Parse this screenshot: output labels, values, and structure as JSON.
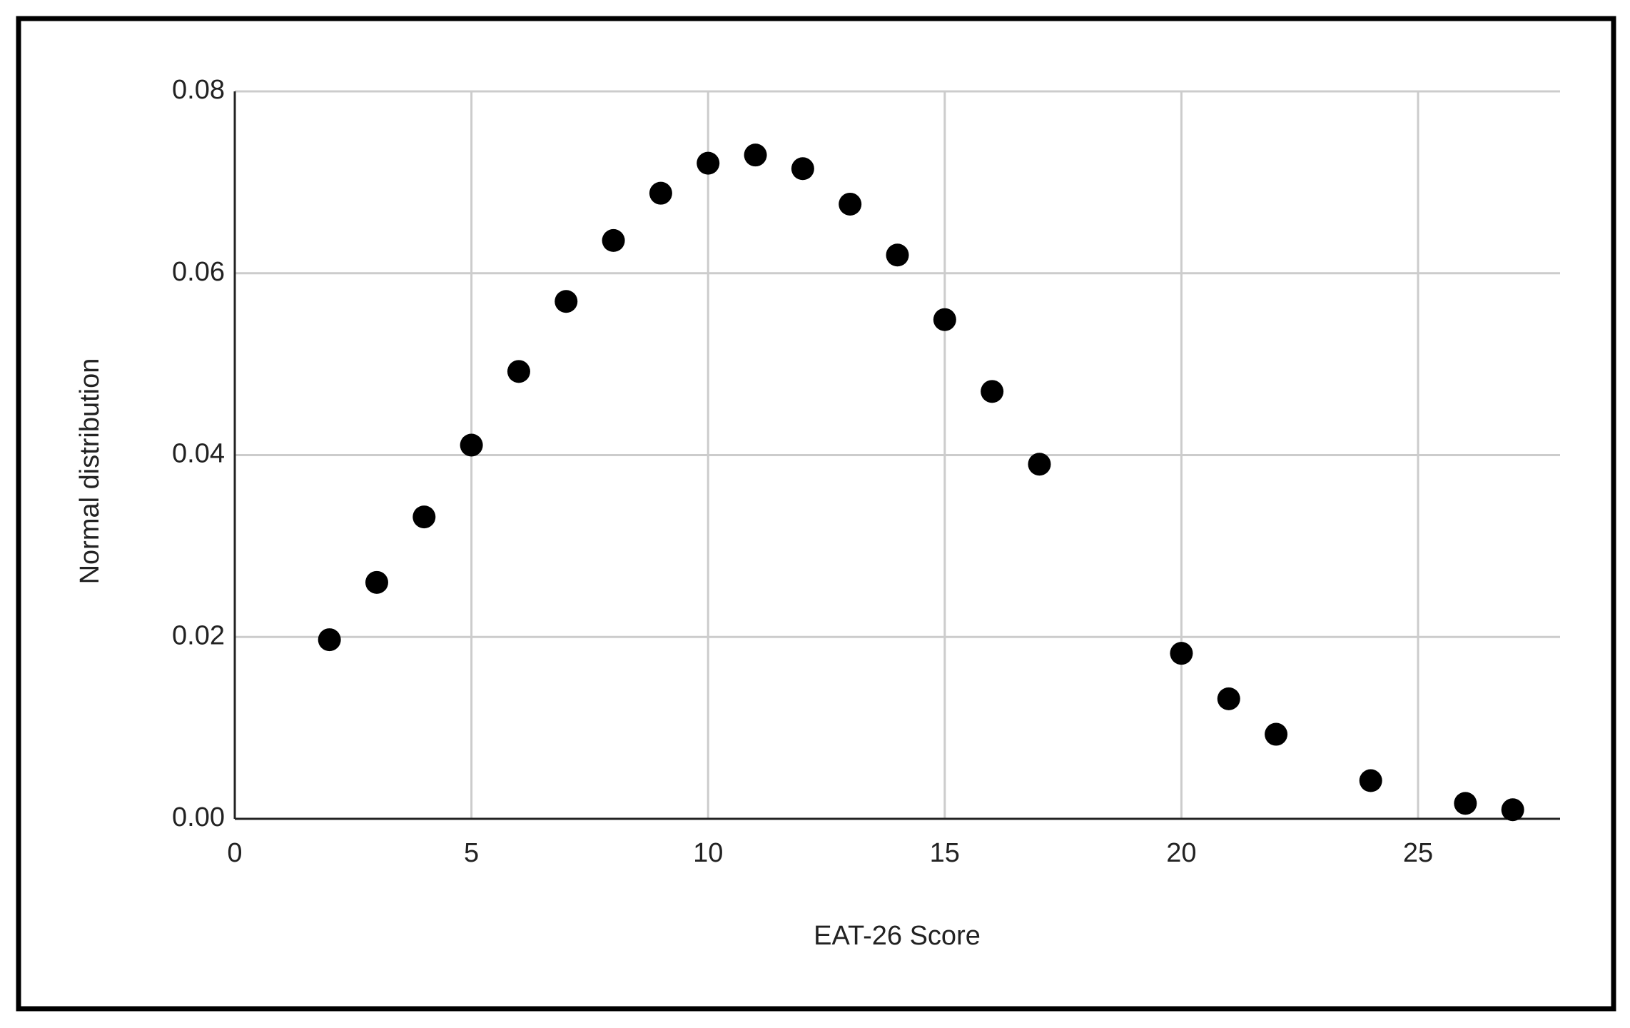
{
  "chart_data": {
    "type": "scatter",
    "x_label": "EAT-26 Score",
    "y_label": "Normal distribution",
    "x": [
      2,
      3,
      4,
      5,
      6,
      7,
      8,
      9,
      10,
      11,
      12,
      13,
      14,
      15,
      16,
      17,
      20,
      21,
      22,
      24,
      26,
      27
    ],
    "values": [
      0.0197,
      0.026,
      0.0332,
      0.0411,
      0.0492,
      0.0569,
      0.0636,
      0.0688,
      0.0721,
      0.073,
      0.0715,
      0.0676,
      0.062,
      0.0549,
      0.047,
      0.039,
      0.0182,
      0.0132,
      0.0093,
      0.0042,
      0.0017,
      0.001
    ],
    "color": "#000000",
    "xlim": [
      0,
      28
    ],
    "xticks": [
      0,
      5,
      10,
      15,
      20,
      25
    ],
    "ylim": [
      0,
      0.08
    ],
    "yticks": [
      {
        "value": 0,
        "label": "0.00"
      },
      {
        "value": 0.02,
        "label": "0.02"
      },
      {
        "value": 0.04,
        "label": "0.04"
      },
      {
        "value": 0.06,
        "label": "0.06"
      },
      {
        "value": 0.08,
        "label": "0.08"
      }
    ],
    "grid": true
  }
}
